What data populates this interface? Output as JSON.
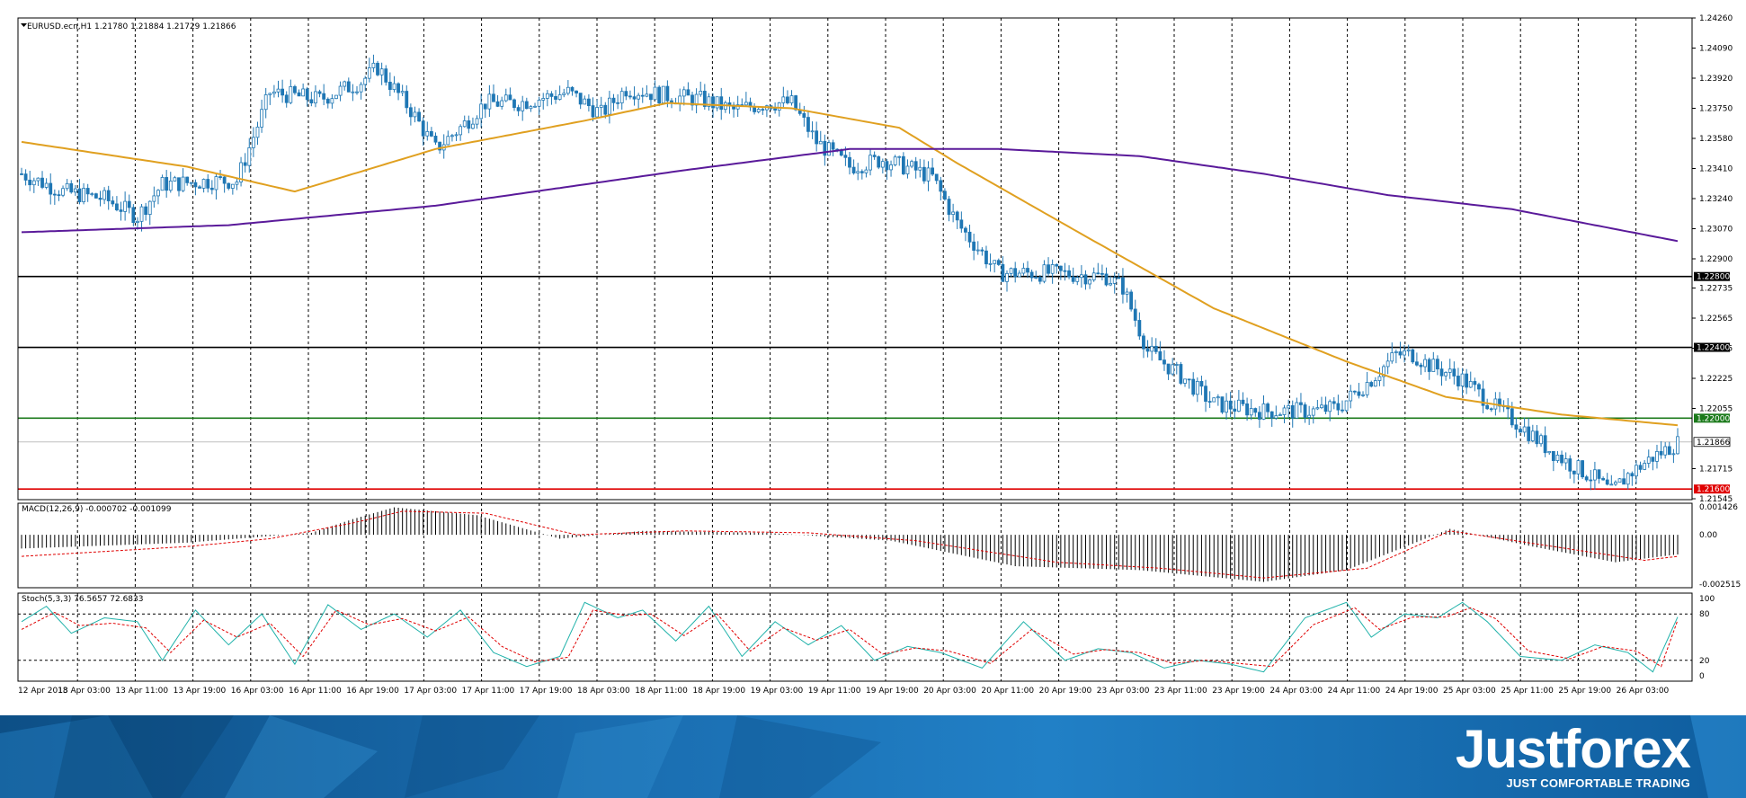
{
  "main": {
    "title": "EURUSD.ecn,H1  1.21780 1.21884 1.21729 1.21866",
    "price_axis": [
      "1.24260",
      "1.24090",
      "1.23920",
      "1.23750",
      "1.23580",
      "1.23410",
      "1.23240",
      "1.23070",
      "1.22900",
      "1.22735",
      "1.22565",
      "1.22395",
      "1.22225",
      "1.22055",
      "1.21715",
      "1.21545"
    ],
    "levels": [
      {
        "value": 1.228,
        "label": "1.22800",
        "color": "#000000"
      },
      {
        "value": 1.224,
        "label": "1.22400",
        "color": "#000000"
      },
      {
        "value": 1.22,
        "label": "1.22000",
        "color": "#1b7a1b"
      },
      {
        "value": 1.216,
        "label": "1.21600",
        "color": "#e00000"
      }
    ],
    "current": {
      "value": 1.21866,
      "label": "1.21866"
    },
    "ma_fast_color": "#e0a020",
    "ma_slow_color": "#5a1a9a",
    "candle_color": "#1f77b4"
  },
  "macd": {
    "title": "MACD(12,26,9) -0.000702 -0.001099",
    "axis": [
      "0.001426",
      "0.00",
      "-0.002515"
    ]
  },
  "stoch": {
    "title": "Stoch(5,3,3) 76.5657 72.6833",
    "axis": [
      "100",
      "80",
      "20",
      "0"
    ]
  },
  "time_axis": [
    "12 Apr 2018",
    "13 Apr 03:00",
    "13 Apr 11:00",
    "13 Apr 19:00",
    "16 Apr 03:00",
    "16 Apr 11:00",
    "16 Apr 19:00",
    "17 Apr 03:00",
    "17 Apr 11:00",
    "17 Apr 19:00",
    "18 Apr 03:00",
    "18 Apr 11:00",
    "18 Apr 19:00",
    "19 Apr 03:00",
    "19 Apr 11:00",
    "19 Apr 19:00",
    "20 Apr 03:00",
    "20 Apr 11:00",
    "20 Apr 19:00",
    "23 Apr 03:00",
    "23 Apr 11:00",
    "23 Apr 19:00",
    "24 Apr 03:00",
    "24 Apr 11:00",
    "24 Apr 19:00",
    "25 Apr 03:00",
    "25 Apr 11:00",
    "25 Apr 19:00",
    "26 Apr 03:00"
  ],
  "brand": {
    "name": "Justforex",
    "tagline": "JUST COMFORTABLE TRADING"
  },
  "chart_data": {
    "type": "candlestick",
    "title": "EURUSD.ecn,H1",
    "ylim": [
      1.2154,
      1.2426
    ],
    "anchors": [
      [
        0,
        1.2338
      ],
      [
        10,
        1.2328
      ],
      [
        20,
        1.2324
      ],
      [
        28,
        1.2314
      ],
      [
        34,
        1.2332
      ],
      [
        46,
        1.2334
      ],
      [
        52,
        1.2334
      ],
      [
        60,
        1.2384
      ],
      [
        72,
        1.238
      ],
      [
        82,
        1.239
      ],
      [
        86,
        1.2398
      ],
      [
        94,
        1.2374
      ],
      [
        100,
        1.2352
      ],
      [
        106,
        1.2364
      ],
      [
        112,
        1.2378
      ],
      [
        120,
        1.2378
      ],
      [
        132,
        1.2384
      ],
      [
        140,
        1.2372
      ],
      [
        146,
        1.2386
      ],
      [
        156,
        1.2382
      ],
      [
        164,
        1.238
      ],
      [
        172,
        1.2374
      ],
      [
        180,
        1.2378
      ],
      [
        186,
        1.2378
      ],
      [
        192,
        1.2356
      ],
      [
        200,
        1.2342
      ],
      [
        208,
        1.2346
      ],
      [
        216,
        1.234
      ],
      [
        220,
        1.2336
      ],
      [
        226,
        1.231
      ],
      [
        236,
        1.2282
      ],
      [
        242,
        1.2282
      ],
      [
        248,
        1.2282
      ],
      [
        262,
        1.228
      ],
      [
        266,
        1.2274
      ],
      [
        272,
        1.2238
      ],
      [
        280,
        1.2224
      ],
      [
        288,
        1.2208
      ],
      [
        300,
        1.2204
      ],
      [
        306,
        1.2204
      ],
      [
        312,
        1.2204
      ],
      [
        318,
        1.2206
      ],
      [
        326,
        1.2222
      ],
      [
        332,
        1.2236
      ],
      [
        336,
        1.2236
      ],
      [
        340,
        1.223
      ],
      [
        348,
        1.2222
      ],
      [
        356,
        1.2206
      ],
      [
        362,
        1.2196
      ],
      [
        368,
        1.2184
      ],
      [
        374,
        1.2174
      ],
      [
        380,
        1.2166
      ],
      [
        384,
        1.2158
      ],
      [
        388,
        1.2168
      ],
      [
        394,
        1.2178
      ],
      [
        400,
        1.2186
      ]
    ],
    "ma_fast_anchors": [
      [
        0,
        1.2356
      ],
      [
        40,
        1.2342
      ],
      [
        66,
        1.2328
      ],
      [
        100,
        1.2352
      ],
      [
        136,
        1.2368
      ],
      [
        156,
        1.2378
      ],
      [
        186,
        1.2375
      ],
      [
        212,
        1.2364
      ],
      [
        226,
        1.2344
      ],
      [
        256,
        1.2304
      ],
      [
        288,
        1.2262
      ],
      [
        320,
        1.2232
      ],
      [
        344,
        1.2212
      ],
      [
        372,
        1.2202
      ],
      [
        400,
        1.2196
      ]
    ],
    "ma_slow_anchors": [
      [
        0,
        1.2305
      ],
      [
        50,
        1.2309
      ],
      [
        100,
        1.232
      ],
      [
        160,
        1.234
      ],
      [
        200,
        1.2352
      ],
      [
        236,
        1.2352
      ],
      [
        270,
        1.2348
      ],
      [
        300,
        1.2338
      ],
      [
        330,
        1.2326
      ],
      [
        360,
        1.2318
      ],
      [
        400,
        1.23
      ]
    ],
    "macd_anchors": [
      [
        0,
        -0.0007
      ],
      [
        40,
        -0.0004
      ],
      [
        70,
        0.0001
      ],
      [
        80,
        0.0008
      ],
      [
        90,
        0.0014
      ],
      [
        110,
        0.001
      ],
      [
        130,
        -0.0002
      ],
      [
        150,
        0.0002
      ],
      [
        180,
        0.0001
      ],
      [
        210,
        -0.0003
      ],
      [
        240,
        -0.0016
      ],
      [
        270,
        -0.0018
      ],
      [
        300,
        -0.0024
      ],
      [
        320,
        -0.0018
      ],
      [
        345,
        0.0003
      ],
      [
        365,
        -0.0006
      ],
      [
        385,
        -0.0014
      ],
      [
        400,
        -0.001
      ]
    ],
    "signal_anchors": [
      [
        0,
        -0.0011
      ],
      [
        40,
        -0.0006
      ],
      [
        60,
        -0.0002
      ],
      [
        80,
        0.0006
      ],
      [
        92,
        0.0012
      ],
      [
        112,
        0.0011
      ],
      [
        134,
        0.0
      ],
      [
        160,
        0.0002
      ],
      [
        190,
        0.0001
      ],
      [
        216,
        -0.0003
      ],
      [
        250,
        -0.0014
      ],
      [
        275,
        -0.0017
      ],
      [
        300,
        -0.0022
      ],
      [
        325,
        -0.0017
      ],
      [
        345,
        0.0002
      ],
      [
        370,
        -0.0006
      ],
      [
        392,
        -0.0013
      ],
      [
        400,
        -0.0011
      ]
    ],
    "stoch_k_anchors": [
      [
        0,
        70
      ],
      [
        6,
        90
      ],
      [
        12,
        55
      ],
      [
        20,
        75
      ],
      [
        28,
        70
      ],
      [
        34,
        20
      ],
      [
        42,
        85
      ],
      [
        50,
        40
      ],
      [
        58,
        80
      ],
      [
        66,
        15
      ],
      [
        74,
        92
      ],
      [
        82,
        60
      ],
      [
        90,
        80
      ],
      [
        98,
        50
      ],
      [
        106,
        85
      ],
      [
        114,
        30
      ],
      [
        122,
        12
      ],
      [
        130,
        25
      ],
      [
        136,
        95
      ],
      [
        144,
        75
      ],
      [
        150,
        85
      ],
      [
        158,
        45
      ],
      [
        166,
        90
      ],
      [
        174,
        25
      ],
      [
        182,
        70
      ],
      [
        190,
        40
      ],
      [
        198,
        65
      ],
      [
        206,
        20
      ],
      [
        214,
        38
      ],
      [
        222,
        30
      ],
      [
        232,
        10
      ],
      [
        242,
        70
      ],
      [
        252,
        20
      ],
      [
        260,
        35
      ],
      [
        268,
        30
      ],
      [
        276,
        10
      ],
      [
        284,
        20
      ],
      [
        292,
        15
      ],
      [
        300,
        5
      ],
      [
        310,
        75
      ],
      [
        320,
        95
      ],
      [
        326,
        50
      ],
      [
        334,
        80
      ],
      [
        342,
        75
      ],
      [
        348,
        95
      ],
      [
        354,
        70
      ],
      [
        362,
        25
      ],
      [
        372,
        20
      ],
      [
        380,
        40
      ],
      [
        388,
        30
      ],
      [
        394,
        5
      ],
      [
        400,
        76
      ]
    ],
    "stoch_d_anchors": [
      [
        0,
        60
      ],
      [
        8,
        82
      ],
      [
        14,
        65
      ],
      [
        22,
        68
      ],
      [
        30,
        62
      ],
      [
        36,
        30
      ],
      [
        44,
        72
      ],
      [
        52,
        50
      ],
      [
        60,
        68
      ],
      [
        68,
        25
      ],
      [
        76,
        85
      ],
      [
        84,
        66
      ],
      [
        92,
        74
      ],
      [
        100,
        58
      ],
      [
        108,
        76
      ],
      [
        116,
        38
      ],
      [
        124,
        18
      ],
      [
        132,
        24
      ],
      [
        138,
        85
      ],
      [
        146,
        78
      ],
      [
        152,
        80
      ],
      [
        160,
        52
      ],
      [
        168,
        80
      ],
      [
        176,
        32
      ],
      [
        184,
        62
      ],
      [
        192,
        46
      ],
      [
        200,
        60
      ],
      [
        208,
        28
      ],
      [
        216,
        36
      ],
      [
        224,
        32
      ],
      [
        234,
        16
      ],
      [
        244,
        60
      ],
      [
        254,
        28
      ],
      [
        262,
        34
      ],
      [
        270,
        30
      ],
      [
        278,
        16
      ],
      [
        286,
        20
      ],
      [
        294,
        16
      ],
      [
        302,
        12
      ],
      [
        312,
        66
      ],
      [
        322,
        88
      ],
      [
        328,
        60
      ],
      [
        336,
        76
      ],
      [
        344,
        76
      ],
      [
        350,
        88
      ],
      [
        356,
        74
      ],
      [
        364,
        32
      ],
      [
        374,
        22
      ],
      [
        382,
        38
      ],
      [
        390,
        32
      ],
      [
        396,
        12
      ],
      [
        400,
        72
      ]
    ],
    "n_bars": 401
  }
}
